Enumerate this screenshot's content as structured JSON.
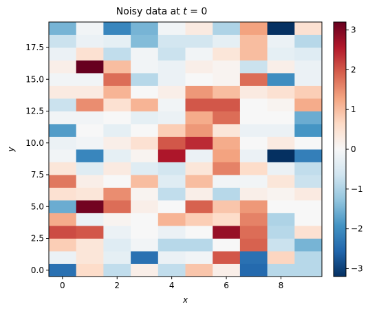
{
  "chart_data": {
    "type": "heatmap",
    "title": "Noisy data at t = 0",
    "title_prefix": "Noisy data at ",
    "title_var": "t",
    "title_suffix": " = 0",
    "xlabel": "x",
    "ylabel": "y",
    "x_ticks": [
      0,
      2,
      4,
      6,
      8
    ],
    "y_ticks": [
      0.0,
      2.5,
      5.0,
      7.5,
      10.0,
      12.5,
      15.0,
      17.5
    ],
    "x_tick_labels": [
      "0",
      "2",
      "4",
      "6",
      "8"
    ],
    "y_tick_labels": [
      "0.0",
      "2.5",
      "5.0",
      "7.5",
      "10.0",
      "12.5",
      "15.0",
      "17.5"
    ],
    "xlim": [
      -0.5,
      9.5
    ],
    "ylim": [
      -0.5,
      19.5
    ],
    "colormap": "RdBu_r",
    "vmin": -3.2,
    "vmax": 3.2,
    "colorbar_ticks": [
      -3,
      -2,
      -1,
      0,
      1,
      2,
      3
    ],
    "colorbar_tick_labels": [
      "−3",
      "−2",
      "−1",
      "0",
      "1",
      "2",
      "3"
    ],
    "x": [
      0,
      1,
      2,
      3,
      4,
      5,
      6,
      7,
      8,
      9
    ],
    "y": [
      0,
      1,
      2,
      3,
      4,
      5,
      6,
      7,
      8,
      9,
      10,
      11,
      12,
      13,
      14,
      15,
      16,
      17,
      18,
      19
    ],
    "z": [
      [
        -2.4,
        0.6,
        -0.8,
        0.2,
        -0.8,
        0.9,
        0.2,
        -2.5,
        -0.9,
        -0.9
      ],
      [
        -0.2,
        0.4,
        -0.3,
        -2.4,
        -0.2,
        -0.1,
        2.0,
        -2.4,
        0.7,
        -0.9
      ],
      [
        0.8,
        0.4,
        -0.4,
        -0.1,
        -0.9,
        -0.9,
        0.0,
        1.9,
        -0.7,
        -1.5
      ],
      [
        2.1,
        2.0,
        -0.2,
        0.0,
        -0.2,
        0.0,
        2.8,
        1.8,
        -0.9,
        0.5
      ],
      [
        1.2,
        -0.2,
        0.1,
        0.0,
        1.1,
        0.8,
        0.6,
        1.6,
        -1.0,
        0.0
      ],
      [
        -1.6,
        3.1,
        1.8,
        0.2,
        0.0,
        1.9,
        0.9,
        1.4,
        0.0,
        0.0
      ],
      [
        0.5,
        0.4,
        1.5,
        0.1,
        -0.8,
        0.2,
        -0.9,
        0.2,
        0.1,
        0.3
      ],
      [
        1.7,
        0.2,
        0.0,
        1.0,
        -0.4,
        1.0,
        -0.1,
        -0.1,
        0.4,
        -0.7
      ],
      [
        0.4,
        -0.4,
        0.3,
        -0.4,
        -0.6,
        0.4,
        1.6,
        0.6,
        -0.2,
        -0.8
      ],
      [
        -0.1,
        -2.1,
        -0.3,
        0.1,
        2.6,
        -0.2,
        1.3,
        -0.2,
        -3.2,
        -2.2
      ],
      [
        -0.2,
        -0.1,
        0.2,
        0.5,
        2.0,
        2.4,
        1.2,
        0.0,
        0.3,
        0.0
      ],
      [
        -1.8,
        0.0,
        -0.3,
        0.0,
        0.8,
        1.4,
        0.4,
        -0.2,
        -0.2,
        -1.9
      ],
      [
        -0.1,
        -0.1,
        0.0,
        -0.3,
        -0.2,
        1.2,
        1.8,
        0.0,
        0.0,
        -1.6
      ],
      [
        -0.7,
        1.5,
        0.5,
        1.1,
        -0.1,
        2.0,
        2.0,
        0.0,
        0.1,
        1.2
      ],
      [
        0.3,
        0.3,
        1.1,
        0.0,
        0.2,
        1.4,
        1.0,
        0.3,
        0.5,
        0.8
      ],
      [
        -0.1,
        -0.1,
        1.8,
        -0.9,
        -0.2,
        0.0,
        0.1,
        1.8,
        -2.0,
        -0.2
      ],
      [
        0.2,
        3.2,
        1.0,
        -0.1,
        -0.2,
        0.2,
        0.1,
        -0.7,
        0.2,
        -0.2
      ],
      [
        -0.2,
        0.5,
        -0.8,
        -0.1,
        -0.7,
        -0.1,
        0.4,
        1.0,
        -0.3,
        -0.4
      ],
      [
        -0.7,
        -0.2,
        -0.3,
        -1.4,
        -0.6,
        -0.6,
        -0.3,
        1.0,
        -0.2,
        -0.9
      ],
      [
        -1.5,
        -0.1,
        -2.1,
        -1.5,
        -0.1,
        0.3,
        -1.0,
        1.3,
        -3.2,
        0.5
      ]
    ]
  }
}
